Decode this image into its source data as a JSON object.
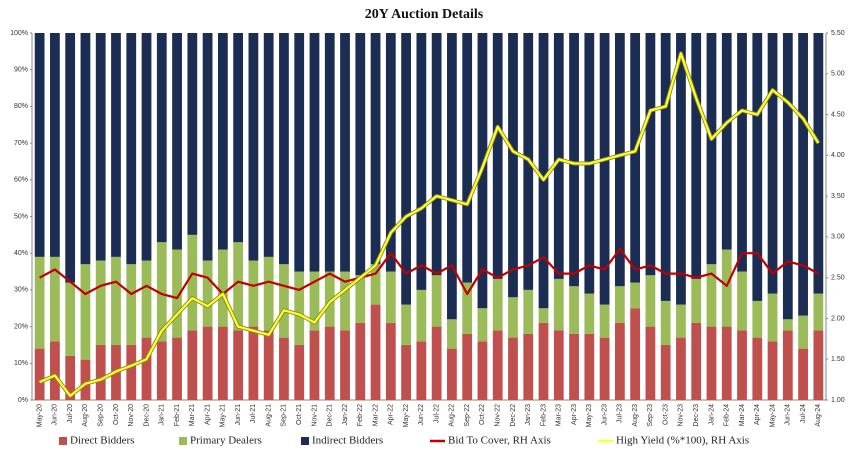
{
  "chart_data": {
    "type": "bar",
    "stacked": true,
    "title": "20Y Auction Details",
    "categories": [
      "May-20",
      "Jun-20",
      "Jul-20",
      "Aug-20",
      "Sep-20",
      "Oct-20",
      "Nov-20",
      "Dec-20",
      "Jan-21",
      "Feb-21",
      "Mar-21",
      "Apr-21",
      "May-21",
      "Jun-21",
      "Jul-21",
      "Aug-21",
      "Sep-21",
      "Oct-21",
      "Nov-21",
      "Dec-21",
      "Jan-22",
      "Feb-22",
      "Mar-22",
      "Apr-22",
      "May-22",
      "Jun-22",
      "Jul-22",
      "Aug-22",
      "Sep-22",
      "Oct-22",
      "Nov-22",
      "Dec-22",
      "Jan-23",
      "Feb-23",
      "Mar-23",
      "Apr-23",
      "May-23",
      "Jun-23",
      "Jul-23",
      "Aug-23",
      "Sep-23",
      "Oct-23",
      "Nov-23",
      "Dec-23",
      "Jan-24",
      "Feb-24",
      "Mar-24",
      "Apr-24",
      "May-24",
      "Jun-24",
      "Jul-24",
      "Aug-24"
    ],
    "series": [
      {
        "name": "Direct Bidders",
        "color": "#c0504d",
        "values": [
          14,
          16,
          12,
          11,
          15,
          15,
          15,
          17,
          16,
          17,
          19,
          20,
          20,
          19,
          20,
          19,
          17,
          15,
          19,
          20,
          19,
          21,
          26,
          21,
          15,
          16,
          20,
          14,
          18,
          16,
          19,
          17,
          18,
          21,
          19,
          18,
          18,
          17,
          21,
          25,
          20,
          15,
          17,
          21,
          20,
          20,
          19,
          17,
          16,
          19,
          14,
          19
        ]
      },
      {
        "name": "Primary Dealers",
        "color": "#9bbb59",
        "values": [
          25,
          23,
          20,
          26,
          23,
          24,
          22,
          21,
          27,
          24,
          26,
          18,
          21,
          24,
          18,
          20,
          20,
          20,
          16,
          15,
          16,
          13,
          11,
          14,
          11,
          14,
          14,
          8,
          14,
          9,
          14,
          11,
          12,
          4,
          14,
          13,
          11,
          9,
          10,
          7,
          14,
          12,
          9,
          12,
          17,
          21,
          16,
          10,
          13,
          3,
          9,
          10
        ]
      },
      {
        "name": "Indirect Bidders",
        "color": "#1c2d54",
        "values": [
          61,
          61,
          68,
          63,
          62,
          61,
          63,
          62,
          57,
          59,
          55,
          62,
          59,
          57,
          62,
          61,
          63,
          65,
          65,
          65,
          65,
          66,
          63,
          65,
          74,
          70,
          66,
          78,
          68,
          75,
          67,
          72,
          70,
          75,
          67,
          69,
          71,
          74,
          69,
          68,
          66,
          73,
          74,
          67,
          63,
          59,
          65,
          73,
          71,
          78,
          77,
          71
        ]
      },
      {
        "name": "Bid To Cover, RH Axis",
        "type": "line",
        "axis": "y2",
        "color": "#c00000",
        "values": [
          2.5,
          2.6,
          2.45,
          2.3,
          2.4,
          2.45,
          2.3,
          2.4,
          2.3,
          2.25,
          2.55,
          2.5,
          2.3,
          2.45,
          2.4,
          2.45,
          2.4,
          2.35,
          2.45,
          2.55,
          2.45,
          2.5,
          2.55,
          2.8,
          2.55,
          2.65,
          2.55,
          2.65,
          2.3,
          2.6,
          2.5,
          2.6,
          2.65,
          2.75,
          2.55,
          2.55,
          2.65,
          2.6,
          2.85,
          2.6,
          2.65,
          2.55,
          2.55,
          2.5,
          2.55,
          2.4,
          2.8,
          2.8,
          2.55,
          2.7,
          2.65,
          2.55
        ]
      },
      {
        "name": "High Yield (%*100), RH Axis",
        "type": "line",
        "axis": "y2",
        "color": "#ffff33",
        "values": [
          1.22,
          1.3,
          1.05,
          1.2,
          1.25,
          1.35,
          1.42,
          1.5,
          1.85,
          2.05,
          2.25,
          2.15,
          2.3,
          1.9,
          1.85,
          1.8,
          2.1,
          2.05,
          1.95,
          2.2,
          2.35,
          2.5,
          2.65,
          3.05,
          3.25,
          3.35,
          3.5,
          3.45,
          3.4,
          3.85,
          4.35,
          4.05,
          3.95,
          3.7,
          3.95,
          3.9,
          3.9,
          3.95,
          4.0,
          4.05,
          4.55,
          4.6,
          5.25,
          4.7,
          4.2,
          4.4,
          4.55,
          4.5,
          4.8,
          4.65,
          4.45,
          4.15
        ]
      }
    ],
    "ylim": [
      0,
      100
    ],
    "yticks": [
      {
        "value": 0,
        "label": "0%"
      },
      {
        "value": 10,
        "label": "10%"
      },
      {
        "value": 20,
        "label": "20%"
      },
      {
        "value": 30,
        "label": "30%"
      },
      {
        "value": 40,
        "label": "40%"
      },
      {
        "value": 50,
        "label": "50%"
      },
      {
        "value": 60,
        "label": "60%"
      },
      {
        "value": 70,
        "label": "70%"
      },
      {
        "value": 80,
        "label": "80%"
      },
      {
        "value": 90,
        "label": "90%"
      },
      {
        "value": 100,
        "label": "100%"
      }
    ],
    "y2lim": [
      1,
      5.5
    ],
    "y2ticks": [
      {
        "value": 1,
        "label": "1.00"
      },
      {
        "value": 1.5,
        "label": "1.50"
      },
      {
        "value": 2,
        "label": "2.00"
      },
      {
        "value": 2.5,
        "label": "2.50"
      },
      {
        "value": 3,
        "label": "3.00"
      },
      {
        "value": 3.5,
        "label": "3.50"
      },
      {
        "value": 4,
        "label": "4.00"
      },
      {
        "value": 4.5,
        "label": "4.50"
      },
      {
        "value": 5,
        "label": "5.00"
      },
      {
        "value": 5.5,
        "label": "5.50"
      }
    ],
    "legend": "bottom"
  }
}
